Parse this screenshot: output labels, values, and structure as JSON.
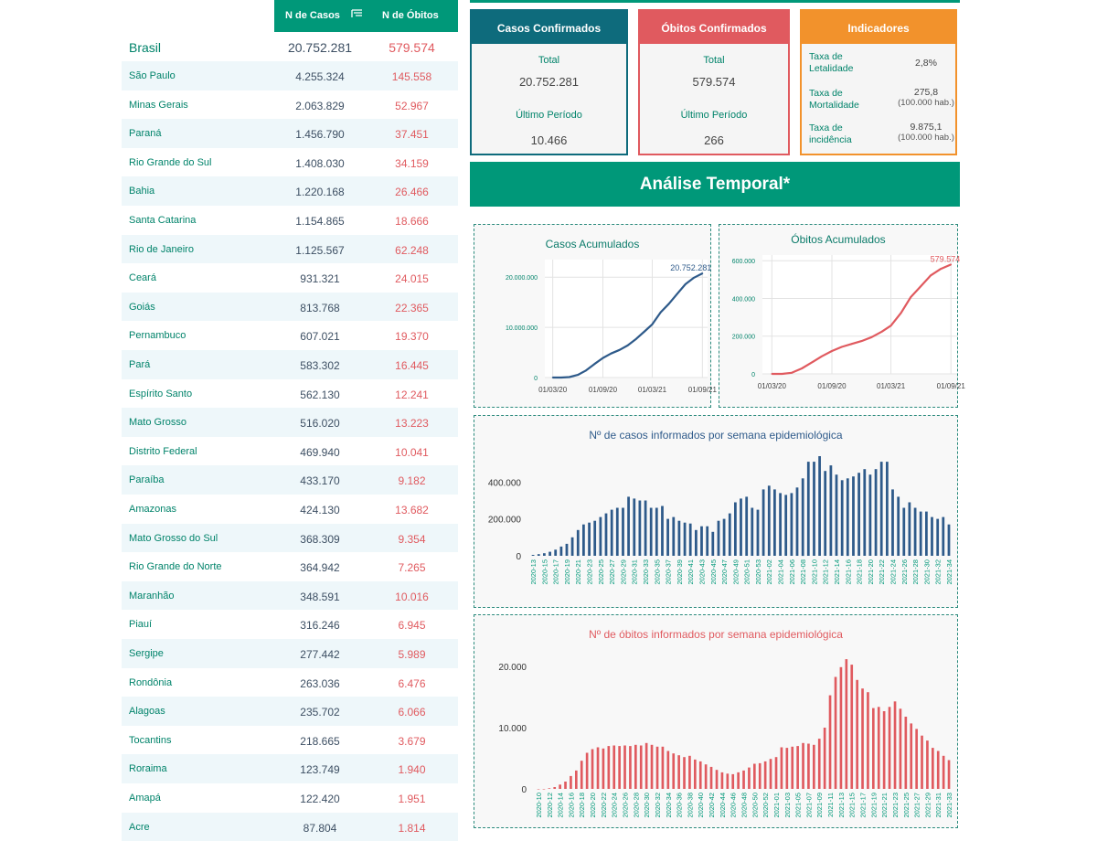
{
  "table": {
    "header": {
      "cases_label": "N de Casos",
      "deaths_label": "N de Óbitos",
      "sort_icon": "sort-filter-icon"
    },
    "brasil": {
      "name": "Brasil",
      "cases": "20.752.281",
      "deaths": "579.574"
    },
    "rows": [
      {
        "name": "São Paulo",
        "cases": "4.255.324",
        "deaths": "145.558"
      },
      {
        "name": "Minas Gerais",
        "cases": "2.063.829",
        "deaths": "52.967"
      },
      {
        "name": "Paraná",
        "cases": "1.456.790",
        "deaths": "37.451"
      },
      {
        "name": "Rio Grande do Sul",
        "cases": "1.408.030",
        "deaths": "34.159"
      },
      {
        "name": "Bahia",
        "cases": "1.220.168",
        "deaths": "26.466"
      },
      {
        "name": "Santa Catarina",
        "cases": "1.154.865",
        "deaths": "18.666"
      },
      {
        "name": "Rio de Janeiro",
        "cases": "1.125.567",
        "deaths": "62.248"
      },
      {
        "name": "Ceará",
        "cases": "931.321",
        "deaths": "24.015"
      },
      {
        "name": "Goiás",
        "cases": "813.768",
        "deaths": "22.365"
      },
      {
        "name": "Pernambuco",
        "cases": "607.021",
        "deaths": "19.370"
      },
      {
        "name": "Pará",
        "cases": "583.302",
        "deaths": "16.445"
      },
      {
        "name": "Espírito Santo",
        "cases": "562.130",
        "deaths": "12.241"
      },
      {
        "name": "Mato Grosso",
        "cases": "516.020",
        "deaths": "13.223"
      },
      {
        "name": "Distrito Federal",
        "cases": "469.940",
        "deaths": "10.041"
      },
      {
        "name": "Paraíba",
        "cases": "433.170",
        "deaths": "9.182"
      },
      {
        "name": "Amazonas",
        "cases": "424.130",
        "deaths": "13.682"
      },
      {
        "name": "Mato Grosso do Sul",
        "cases": "368.309",
        "deaths": "9.354"
      },
      {
        "name": "Rio Grande do Norte",
        "cases": "364.942",
        "deaths": "7.265"
      },
      {
        "name": "Maranhão",
        "cases": "348.591",
        "deaths": "10.016"
      },
      {
        "name": "Piauí",
        "cases": "316.246",
        "deaths": "6.945"
      },
      {
        "name": "Sergipe",
        "cases": "277.442",
        "deaths": "5.989"
      },
      {
        "name": "Rondônia",
        "cases": "263.036",
        "deaths": "6.476"
      },
      {
        "name": "Alagoas",
        "cases": "235.702",
        "deaths": "6.066"
      },
      {
        "name": "Tocantins",
        "cases": "218.665",
        "deaths": "3.679"
      },
      {
        "name": "Roraima",
        "cases": "123.749",
        "deaths": "1.940"
      },
      {
        "name": "Amapá",
        "cases": "122.420",
        "deaths": "1.951"
      },
      {
        "name": "Acre",
        "cases": "87.804",
        "deaths": "1.814"
      }
    ]
  },
  "cards": {
    "cases": {
      "title": "Casos Confirmados",
      "total_label": "Total",
      "total_value": "20.752.281",
      "period_label": "Último Período",
      "period_value": "10.466"
    },
    "deaths": {
      "title": "Óbitos Confirmados",
      "total_label": "Total",
      "total_value": "579.574",
      "period_label": "Último Período",
      "period_value": "266"
    },
    "indicators": {
      "title": "Indicadores",
      "items": [
        {
          "label": "Taxa de Letalidade",
          "value": "2,8%",
          "unit": ""
        },
        {
          "label": "Taxa de Mortalidade",
          "value": "275,8",
          "unit": "(100.000 hab.)"
        },
        {
          "label": "Taxa de incidência",
          "value": "9.875,1",
          "unit": "(100.000 hab.)"
        }
      ]
    }
  },
  "section_title": "Análise Temporal*",
  "colors": {
    "primary": "#009879",
    "cases": "#2e5a8a",
    "deaths": "#e05a5f",
    "indicators": "#f2922c",
    "cases_card": "#0e6b7c"
  },
  "chart_data": [
    {
      "type": "line",
      "title": "Casos Acumulados",
      "x": [
        "2020-03-01",
        "2020-04-01",
        "2020-05-01",
        "2020-06-01",
        "2020-07-01",
        "2020-08-01",
        "2020-09-01",
        "2020-10-01",
        "2020-11-01",
        "2020-12-01",
        "2021-01-01",
        "2021-02-01",
        "2021-03-01",
        "2021-04-01",
        "2021-05-01",
        "2021-06-01",
        "2021-07-01",
        "2021-08-01",
        "2021-09-01"
      ],
      "values": [
        0,
        6000,
        90000,
        530000,
        1400000,
        2700000,
        3900000,
        4800000,
        5500000,
        6400000,
        7700000,
        9200000,
        10600000,
        13000000,
        14700000,
        16700000,
        18600000,
        19900000,
        20752281
      ],
      "x_ticks": [
        "01/03/20",
        "01/09/20",
        "01/03/21",
        "01/09/21"
      ],
      "y_ticks": [
        "0",
        "10.000.000",
        "20.000.000"
      ],
      "ylim": [
        0,
        23500000
      ],
      "end_label": "20.752.281",
      "grid": true
    },
    {
      "type": "line",
      "title": "Óbitos Acumulados",
      "x": [
        "2020-03-01",
        "2020-04-01",
        "2020-05-01",
        "2020-06-01",
        "2020-07-01",
        "2020-08-01",
        "2020-09-01",
        "2020-10-01",
        "2020-11-01",
        "2020-12-01",
        "2021-01-01",
        "2021-02-01",
        "2021-03-01",
        "2021-04-01",
        "2021-05-01",
        "2021-06-01",
        "2021-07-01",
        "2021-08-01",
        "2021-09-01"
      ],
      "values": [
        0,
        200,
        6000,
        29000,
        60000,
        93000,
        121000,
        143000,
        159000,
        174000,
        195000,
        224000,
        256000,
        323000,
        407000,
        465000,
        522000,
        557000,
        579574
      ],
      "x_ticks": [
        "01/03/20",
        "01/09/20",
        "01/03/21",
        "01/09/21"
      ],
      "y_ticks": [
        "0",
        "200.000",
        "400.000",
        "600.000"
      ],
      "ylim": [
        0,
        630000
      ],
      "end_label": "579.574",
      "grid": true
    },
    {
      "type": "bar",
      "title": "Nº de casos informados por semana epidemiológica",
      "categories": [
        "2020-13",
        "2020-14",
        "2020-15",
        "2020-16",
        "2020-17",
        "2020-18",
        "2020-19",
        "2020-20",
        "2020-21",
        "2020-22",
        "2020-23",
        "2020-24",
        "2020-25",
        "2020-26",
        "2020-27",
        "2020-28",
        "2020-29",
        "2020-30",
        "2020-31",
        "2020-32",
        "2020-33",
        "2020-34",
        "2020-35",
        "2020-36",
        "2020-37",
        "2020-38",
        "2020-39",
        "2020-40",
        "2020-41",
        "2020-42",
        "2020-43",
        "2020-44",
        "2020-45",
        "2020-46",
        "2020-47",
        "2020-48",
        "2020-49",
        "2020-50",
        "2020-51",
        "2020-52",
        "2020-53",
        "2021-01",
        "2021-02",
        "2021-03",
        "2021-04",
        "2021-05",
        "2021-06",
        "2021-07",
        "2021-08",
        "2021-09",
        "2021-10",
        "2021-11",
        "2021-12",
        "2021-13",
        "2021-14",
        "2021-15",
        "2021-16",
        "2021-17",
        "2021-18",
        "2021-19",
        "2021-20",
        "2021-21",
        "2021-22",
        "2021-23",
        "2021-24",
        "2021-25",
        "2021-26",
        "2021-27",
        "2021-28",
        "2021-29",
        "2021-30",
        "2021-31",
        "2021-32",
        "2021-33",
        "2021-34"
      ],
      "tick_labels": [
        "2020-13",
        "2020-15",
        "2020-17",
        "2020-19",
        "2020-21",
        "2020-23",
        "2020-25",
        "2020-27",
        "2020-29",
        "2020-31",
        "2020-33",
        "2020-35",
        "2020-37",
        "2020-39",
        "2020-41",
        "2020-43",
        "2020-45",
        "2020-47",
        "2020-49",
        "2020-51",
        "2020-53",
        "2021-02",
        "2021-04",
        "2021-06",
        "2021-08",
        "2021-10",
        "2021-12",
        "2021-14",
        "2021-16",
        "2021-18",
        "2021-20",
        "2021-22",
        "2021-24",
        "2021-26",
        "2021-28",
        "2021-30",
        "2021-32",
        "2021-34"
      ],
      "values": [
        5000,
        9000,
        14000,
        22000,
        33000,
        50000,
        65000,
        100000,
        140000,
        170000,
        180000,
        190000,
        210000,
        230000,
        250000,
        260000,
        260000,
        320000,
        310000,
        300000,
        300000,
        260000,
        260000,
        270000,
        200000,
        210000,
        190000,
        180000,
        175000,
        140000,
        160000,
        160000,
        130000,
        190000,
        200000,
        230000,
        290000,
        310000,
        320000,
        260000,
        250000,
        360000,
        380000,
        360000,
        340000,
        330000,
        340000,
        370000,
        420000,
        510000,
        510000,
        540000,
        460000,
        490000,
        440000,
        410000,
        420000,
        430000,
        450000,
        470000,
        440000,
        470000,
        510000,
        510000,
        360000,
        320000,
        260000,
        290000,
        260000,
        240000,
        240000,
        210000,
        200000,
        210000,
        170000
      ],
      "y_ticks": [
        "0",
        "200.000",
        "400.000"
      ],
      "ylim": [
        0,
        560000
      ]
    },
    {
      "type": "bar",
      "title": "Nº de óbitos informados por semana epidemiológica",
      "categories": [
        "2020-10",
        "2020-11",
        "2020-12",
        "2020-13",
        "2020-14",
        "2020-15",
        "2020-16",
        "2020-17",
        "2020-18",
        "2020-19",
        "2020-20",
        "2020-21",
        "2020-22",
        "2020-23",
        "2020-24",
        "2020-25",
        "2020-26",
        "2020-27",
        "2020-28",
        "2020-29",
        "2020-30",
        "2020-31",
        "2020-32",
        "2020-33",
        "2020-34",
        "2020-35",
        "2020-36",
        "2020-37",
        "2020-38",
        "2020-39",
        "2020-40",
        "2020-41",
        "2020-42",
        "2020-43",
        "2020-44",
        "2020-45",
        "2020-46",
        "2020-47",
        "2020-48",
        "2020-49",
        "2020-50",
        "2020-51",
        "2020-52",
        "2020-53",
        "2021-01",
        "2021-02",
        "2021-03",
        "2021-04",
        "2021-05",
        "2021-06",
        "2021-07",
        "2021-08",
        "2021-09",
        "2021-10",
        "2021-11",
        "2021-12",
        "2021-13",
        "2021-14",
        "2021-15",
        "2021-16",
        "2021-17",
        "2021-18",
        "2021-19",
        "2021-20",
        "2021-21",
        "2021-22",
        "2021-23",
        "2021-24",
        "2021-25",
        "2021-26",
        "2021-27",
        "2021-28",
        "2021-29",
        "2021-30",
        "2021-31",
        "2021-32",
        "2021-33"
      ],
      "tick_labels": [
        "2020-10",
        "2020-12",
        "2020-14",
        "2020-16",
        "2020-18",
        "2020-20",
        "2020-22",
        "2020-24",
        "2020-26",
        "2020-28",
        "2020-30",
        "2020-32",
        "2020-34",
        "2020-36",
        "2020-38",
        "2020-40",
        "2020-42",
        "2020-44",
        "2020-46",
        "2020-48",
        "2020-50",
        "2020-52",
        "2021-01",
        "2021-03",
        "2021-05",
        "2021-07",
        "2021-09",
        "2021-11",
        "2021-13",
        "2021-15",
        "2021-17",
        "2021-19",
        "2021-21",
        "2021-23",
        "2021-25",
        "2021-27",
        "2021-29",
        "2021-31",
        "2021-33"
      ],
      "values": [
        0,
        0,
        100,
        300,
        700,
        1200,
        2100,
        3000,
        4600,
        5900,
        6500,
        6800,
        6600,
        7000,
        7100,
        7000,
        7100,
        7000,
        7200,
        7100,
        7500,
        7200,
        6900,
        6900,
        6200,
        5800,
        5500,
        5200,
        5400,
        4800,
        4500,
        4000,
        3600,
        3100,
        2700,
        2500,
        2400,
        2700,
        3000,
        3500,
        4100,
        4200,
        4500,
        4900,
        5200,
        6800,
        6700,
        6900,
        7000,
        7500,
        7400,
        7200,
        8200,
        10000,
        15300,
        18300,
        19900,
        21200,
        20300,
        17800,
        16400,
        15800,
        13200,
        13400,
        12700,
        13400,
        14300,
        13100,
        11800,
        10700,
        9800,
        8700,
        7900,
        6700,
        6200,
        5400,
        4700
      ],
      "y_ticks": [
        "0",
        "10.000",
        "20.000"
      ],
      "ylim": [
        0,
        23000
      ]
    }
  ]
}
